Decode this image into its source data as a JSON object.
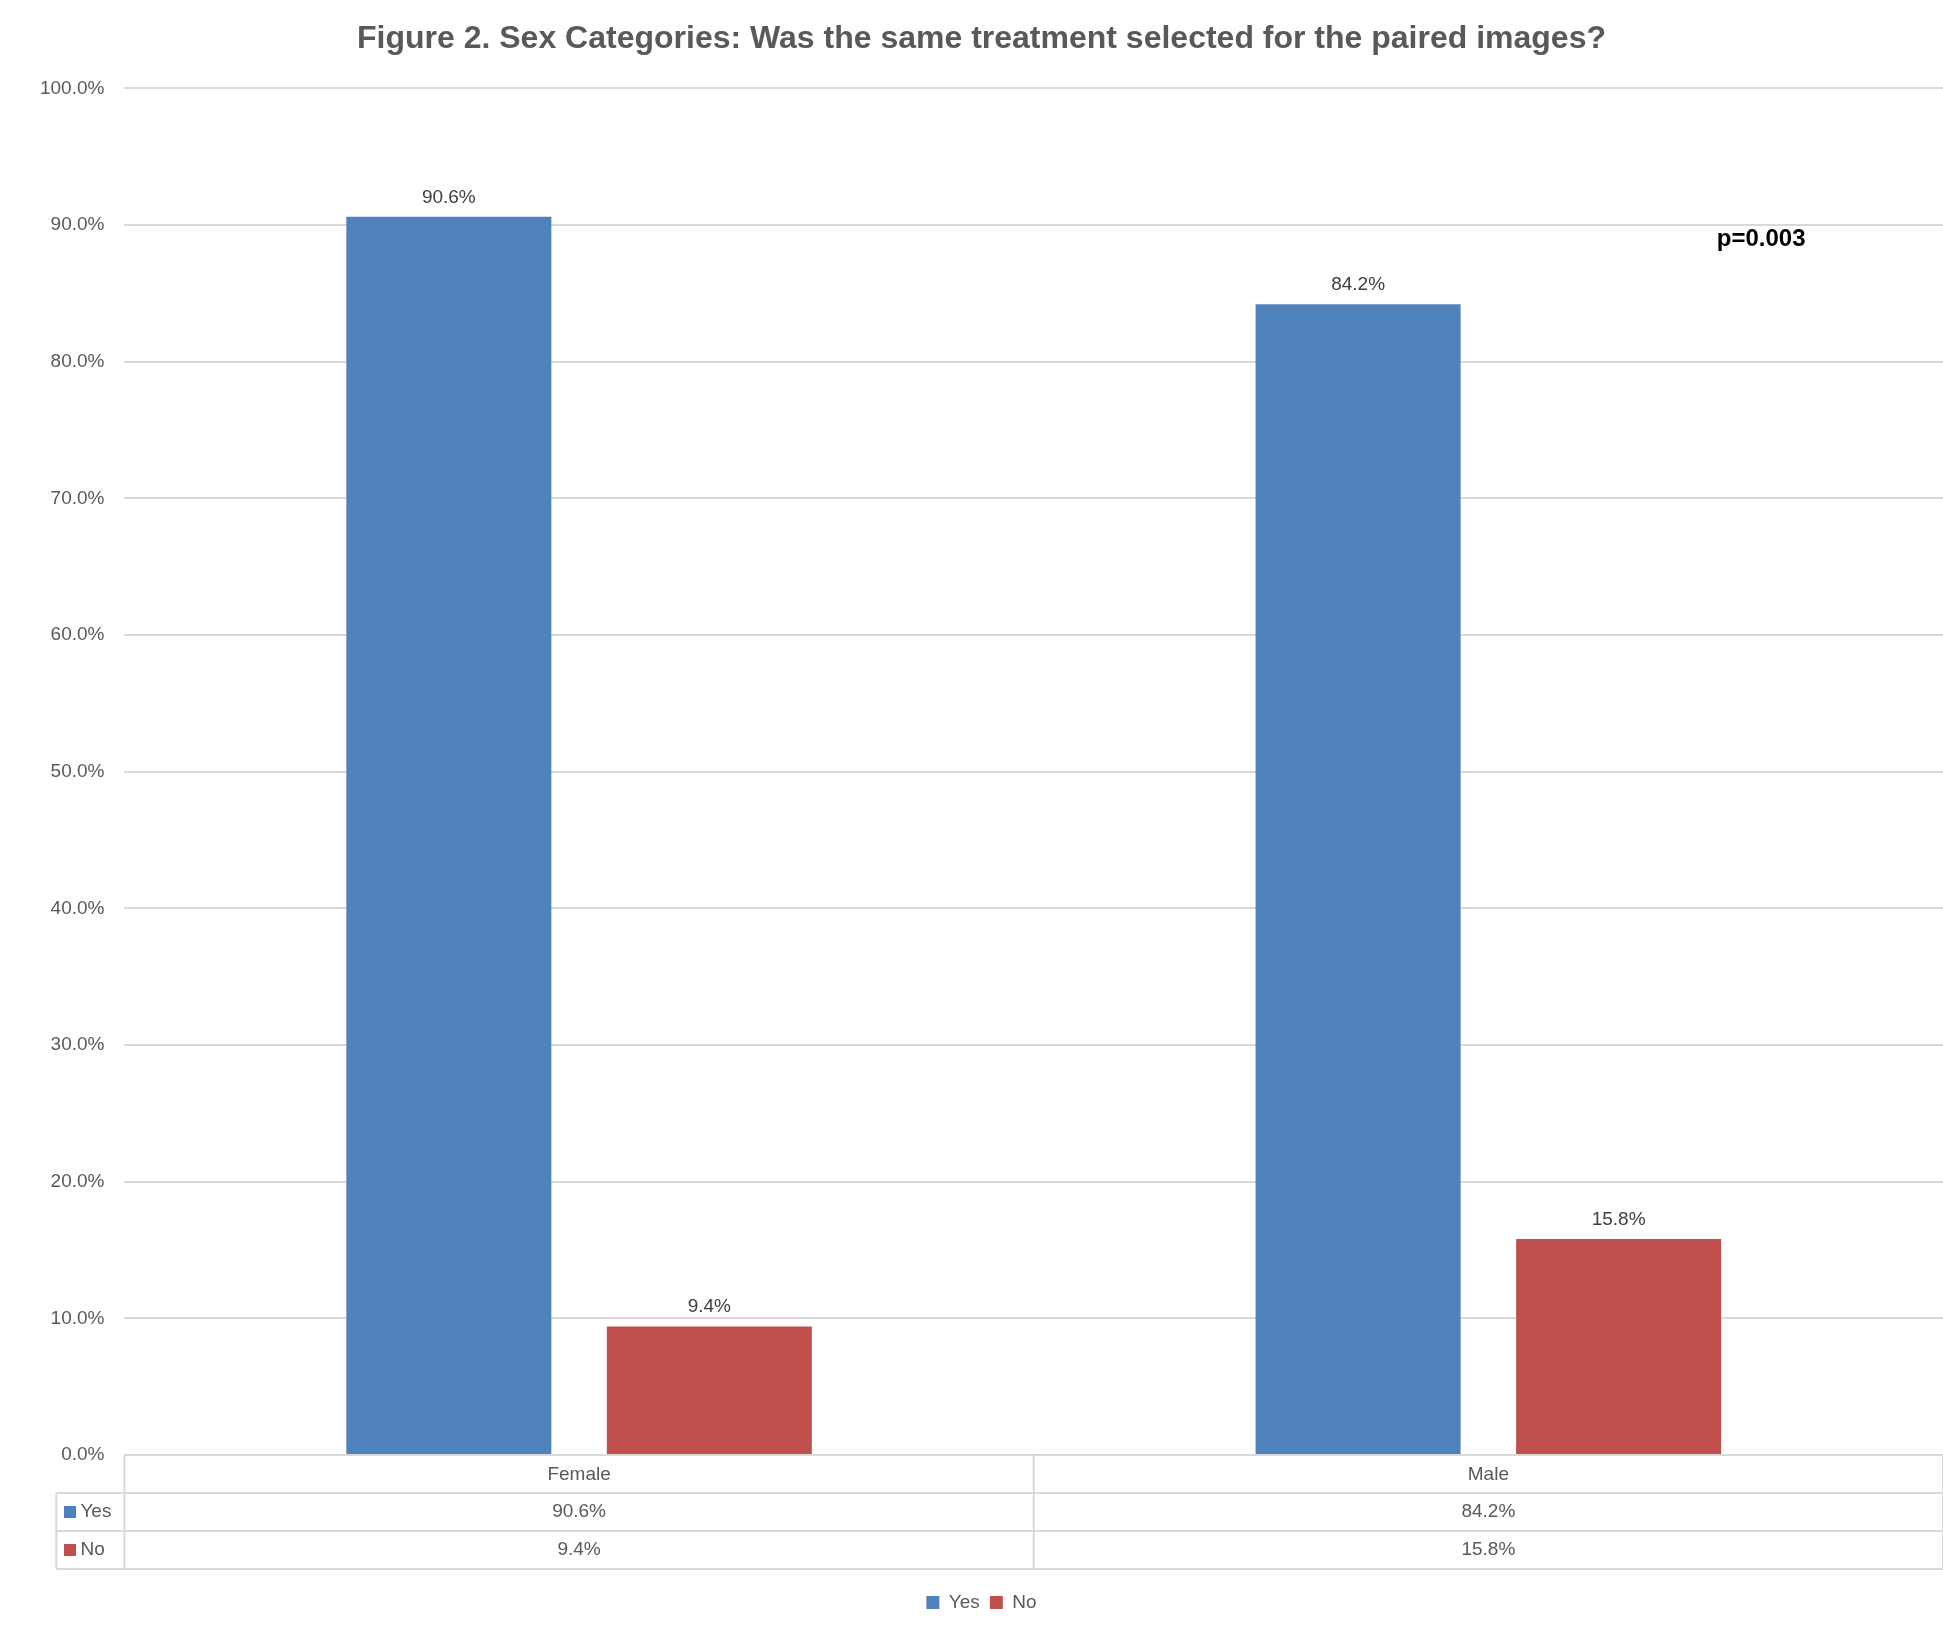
{
  "chart_data": {
    "type": "bar",
    "title": "Figure 2. Sex Categories: Was the same treatment selected for the paired images?",
    "categories": [
      "Female",
      "Male"
    ],
    "series": [
      {
        "name": "Yes",
        "color": "#4f81bd",
        "values": [
          90.6,
          84.2
        ],
        "value_labels": [
          "90.6%",
          "84.2%"
        ]
      },
      {
        "name": "No",
        "color": "#c0504d",
        "values": [
          9.4,
          15.8
        ],
        "value_labels": [
          "9.4%",
          "15.8%"
        ]
      }
    ],
    "ylim": [
      0,
      100
    ],
    "yticks": [
      {
        "value": 0,
        "label": "0.0%"
      },
      {
        "value": 10,
        "label": "10.0%"
      },
      {
        "value": 20,
        "label": "20.0%"
      },
      {
        "value": 30,
        "label": "30.0%"
      },
      {
        "value": 40,
        "label": "40.0%"
      },
      {
        "value": 50,
        "label": "50.0%"
      },
      {
        "value": 60,
        "label": "60.0%"
      },
      {
        "value": 70,
        "label": "70.0%"
      },
      {
        "value": 80,
        "label": "80.0%"
      },
      {
        "value": 90,
        "label": "90.0%"
      },
      {
        "value": 100,
        "label": "100.0%"
      }
    ],
    "grid": "y",
    "legend": "bottom",
    "annotations": [
      "p=0.003"
    ]
  }
}
